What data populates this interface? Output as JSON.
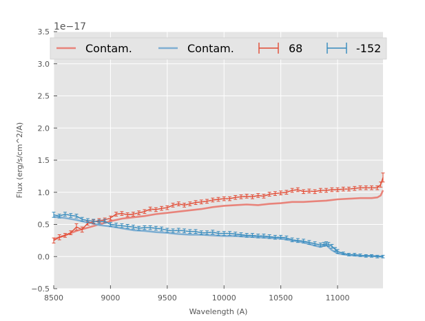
{
  "chart_data": {
    "type": "line",
    "title": "",
    "xlabel": "Wavelength (A)",
    "ylabel": "Flux (erg/s/cm^2/A)",
    "offset_text": "1e−17",
    "xlim": [
      8500,
      11400
    ],
    "ylim": [
      -0.5,
      3.5
    ],
    "xticks": [
      8500,
      9000,
      9500,
      10000,
      10500,
      11000
    ],
    "yticks": [
      -0.5,
      0.0,
      0.5,
      1.0,
      1.5,
      2.0,
      2.5,
      3.0,
      3.5
    ],
    "ytick_labels": [
      "−0.5",
      "0.0",
      "0.5",
      "1.0",
      "1.5",
      "2.0",
      "2.5",
      "3.0",
      "3.5"
    ],
    "grid": true,
    "legend": {
      "location": "top",
      "entries": [
        {
          "label": "Contam.",
          "kind": "line",
          "color": "#e8837a"
        },
        {
          "label": "Contam.",
          "kind": "line",
          "color": "#7eaed2"
        },
        {
          "label": "68",
          "kind": "errorbar",
          "color": "#e24a33"
        },
        {
          "label": "-152",
          "kind": "errorbar",
          "color": "#348abd"
        }
      ]
    },
    "series": [
      {
        "name": "Contam.",
        "kind": "line",
        "color": "#e8837a",
        "x": [
          8500,
          8600,
          8700,
          8800,
          8900,
          9000,
          9100,
          9200,
          9300,
          9400,
          9500,
          9600,
          9700,
          9800,
          9900,
          10000,
          10100,
          10200,
          10300,
          10400,
          10500,
          10600,
          10700,
          10800,
          10900,
          11000,
          11100,
          11200,
          11300,
          11350,
          11380,
          11400
        ],
        "y": [
          0.27,
          0.33,
          0.4,
          0.45,
          0.5,
          0.55,
          0.59,
          0.61,
          0.63,
          0.66,
          0.68,
          0.7,
          0.72,
          0.74,
          0.77,
          0.79,
          0.8,
          0.81,
          0.8,
          0.82,
          0.83,
          0.85,
          0.85,
          0.86,
          0.87,
          0.89,
          0.9,
          0.91,
          0.91,
          0.92,
          0.95,
          1.03
        ]
      },
      {
        "name": "Contam.",
        "kind": "line",
        "color": "#7eaed2",
        "x": [
          8500,
          8600,
          8700,
          8800,
          8900,
          9000,
          9100,
          9200,
          9300,
          9400,
          9500,
          9600,
          9700,
          9800,
          9900,
          10000,
          10100,
          10200,
          10300,
          10400,
          10500,
          10600,
          10700,
          10800,
          10850,
          10900,
          10950,
          11000,
          11100,
          11200,
          11300,
          11400
        ],
        "y": [
          0.62,
          0.6,
          0.57,
          0.53,
          0.49,
          0.47,
          0.44,
          0.41,
          0.4,
          0.38,
          0.37,
          0.35,
          0.34,
          0.34,
          0.33,
          0.32,
          0.32,
          0.31,
          0.3,
          0.29,
          0.28,
          0.25,
          0.22,
          0.17,
          0.15,
          0.18,
          0.1,
          0.05,
          0.02,
          0.01,
          0.01,
          0.0
        ]
      },
      {
        "name": "68",
        "kind": "errorbar",
        "color": "#e24a33",
        "x": [
          8500,
          8550,
          8600,
          8650,
          8700,
          8750,
          8800,
          8850,
          8900,
          8950,
          9000,
          9050,
          9100,
          9150,
          9200,
          9250,
          9300,
          9350,
          9400,
          9450,
          9500,
          9550,
          9600,
          9650,
          9700,
          9750,
          9800,
          9850,
          9900,
          9950,
          10000,
          10050,
          10100,
          10150,
          10200,
          10250,
          10300,
          10350,
          10400,
          10450,
          10500,
          10550,
          10600,
          10650,
          10700,
          10750,
          10800,
          10850,
          10900,
          10950,
          11000,
          11050,
          11100,
          11150,
          11200,
          11250,
          11300,
          11350,
          11380,
          11400
        ],
        "y": [
          0.25,
          0.3,
          0.33,
          0.37,
          0.46,
          0.42,
          0.52,
          0.54,
          0.56,
          0.57,
          0.6,
          0.66,
          0.67,
          0.65,
          0.66,
          0.68,
          0.7,
          0.74,
          0.73,
          0.75,
          0.76,
          0.8,
          0.82,
          0.8,
          0.82,
          0.84,
          0.85,
          0.86,
          0.88,
          0.89,
          0.9,
          0.9,
          0.92,
          0.93,
          0.94,
          0.93,
          0.95,
          0.94,
          0.97,
          0.98,
          0.99,
          1.0,
          1.03,
          1.04,
          1.01,
          1.02,
          1.01,
          1.03,
          1.03,
          1.04,
          1.04,
          1.05,
          1.05,
          1.06,
          1.07,
          1.07,
          1.07,
          1.07,
          1.12,
          1.23
        ],
        "err": [
          0.04,
          0.04,
          0.03,
          0.03,
          0.05,
          0.04,
          0.03,
          0.03,
          0.03,
          0.03,
          0.03,
          0.03,
          0.03,
          0.03,
          0.03,
          0.03,
          0.03,
          0.03,
          0.03,
          0.03,
          0.03,
          0.03,
          0.03,
          0.03,
          0.03,
          0.03,
          0.03,
          0.03,
          0.03,
          0.03,
          0.03,
          0.03,
          0.03,
          0.03,
          0.03,
          0.03,
          0.03,
          0.03,
          0.03,
          0.03,
          0.03,
          0.03,
          0.03,
          0.03,
          0.03,
          0.03,
          0.03,
          0.03,
          0.03,
          0.03,
          0.03,
          0.03,
          0.03,
          0.03,
          0.03,
          0.03,
          0.03,
          0.03,
          0.04,
          0.07
        ]
      },
      {
        "name": "-152",
        "kind": "errorbar",
        "color": "#348abd",
        "x": [
          8500,
          8550,
          8600,
          8650,
          8700,
          8750,
          8800,
          8850,
          8900,
          8950,
          9000,
          9050,
          9100,
          9150,
          9200,
          9250,
          9300,
          9350,
          9400,
          9450,
          9500,
          9550,
          9600,
          9650,
          9700,
          9750,
          9800,
          9850,
          9900,
          9950,
          10000,
          10050,
          10100,
          10150,
          10200,
          10250,
          10300,
          10350,
          10400,
          10450,
          10500,
          10550,
          10600,
          10650,
          10700,
          10750,
          10800,
          10850,
          10880,
          10900,
          10920,
          10950,
          10980,
          11000,
          11050,
          11100,
          11150,
          11200,
          11250,
          11300,
          11350,
          11400
        ],
        "y": [
          0.65,
          0.63,
          0.66,
          0.64,
          0.63,
          0.58,
          0.56,
          0.55,
          0.54,
          0.55,
          0.5,
          0.49,
          0.48,
          0.47,
          0.46,
          0.44,
          0.45,
          0.45,
          0.44,
          0.43,
          0.41,
          0.4,
          0.41,
          0.4,
          0.39,
          0.39,
          0.37,
          0.37,
          0.38,
          0.36,
          0.36,
          0.36,
          0.35,
          0.34,
          0.33,
          0.33,
          0.32,
          0.32,
          0.31,
          0.3,
          0.3,
          0.29,
          0.26,
          0.25,
          0.24,
          0.22,
          0.2,
          0.18,
          0.19,
          0.2,
          0.19,
          0.16,
          0.11,
          0.08,
          0.05,
          0.03,
          0.03,
          0.02,
          0.01,
          0.01,
          0.0,
          0.0
        ],
        "err": [
          0.04,
          0.03,
          0.03,
          0.03,
          0.03,
          0.03,
          0.03,
          0.03,
          0.03,
          0.03,
          0.03,
          0.03,
          0.03,
          0.03,
          0.03,
          0.03,
          0.03,
          0.03,
          0.03,
          0.03,
          0.03,
          0.03,
          0.03,
          0.03,
          0.03,
          0.03,
          0.03,
          0.03,
          0.03,
          0.03,
          0.03,
          0.03,
          0.03,
          0.03,
          0.03,
          0.03,
          0.03,
          0.03,
          0.03,
          0.03,
          0.03,
          0.03,
          0.03,
          0.03,
          0.03,
          0.03,
          0.03,
          0.03,
          0.03,
          0.03,
          0.03,
          0.03,
          0.03,
          0.03,
          0.02,
          0.02,
          0.02,
          0.02,
          0.02,
          0.02,
          0.02,
          0.02
        ]
      }
    ]
  }
}
